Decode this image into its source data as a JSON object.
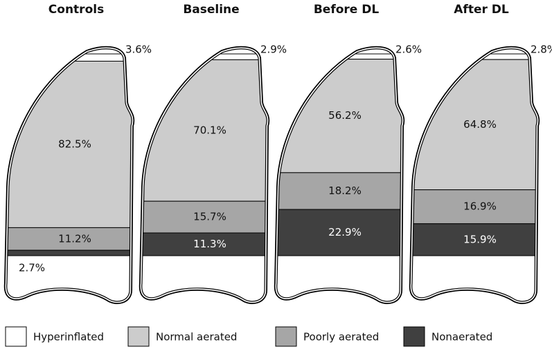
{
  "chart_data": {
    "type": "stacked-lung",
    "categories": [
      "Controls",
      "Baseline",
      "Before DL",
      "After DL"
    ],
    "series": [
      {
        "name": "Hyperinflated",
        "color": "#ffffff",
        "values": [
          3.6,
          2.9,
          2.6,
          2.8
        ],
        "value_labels": [
          "3.6%",
          "2.9%",
          "2.6%",
          "2.8%"
        ]
      },
      {
        "name": "Normal aerated",
        "color": "#cccccc",
        "values": [
          82.5,
          70.1,
          56.2,
          64.8
        ],
        "value_labels": [
          "82.5%",
          "70.1%",
          "56.2%",
          "64.8%"
        ]
      },
      {
        "name": "Poorly aerated",
        "color": "#a6a6a6",
        "values": [
          11.2,
          15.7,
          18.2,
          16.9
        ],
        "value_labels": [
          "11.2%",
          "15.7%",
          "18.2%",
          "16.9%"
        ]
      },
      {
        "name": "Nonaerated",
        "color": "#404040",
        "values": [
          2.7,
          11.3,
          22.9,
          15.9
        ],
        "value_labels": [
          "2.7%",
          "11.3%",
          "22.9%",
          "15.9%"
        ]
      }
    ]
  }
}
